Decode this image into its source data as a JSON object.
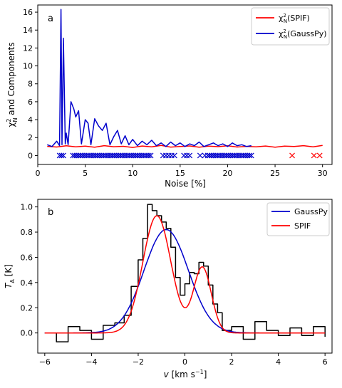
{
  "chart_data": [
    {
      "type": "line",
      "panel_label": "a",
      "xlabel": "Noise [%]",
      "ylabel_main": "χ",
      "ylabel_sup": "2",
      "ylabel_sub": "N",
      "ylabel_rest": " and Components",
      "xlim": [
        0,
        31
      ],
      "ylim": [
        -1,
        16.8
      ],
      "xticks": [
        0,
        5,
        10,
        15,
        20,
        25,
        30
      ],
      "yticks": [
        0,
        2,
        4,
        6,
        8,
        10,
        12,
        14,
        16
      ],
      "legend_position": "top-right",
      "legend": [
        {
          "main": "χ",
          "sup": "2",
          "sub": "N",
          "rest": "(SPIF)",
          "color": "#ff0000"
        },
        {
          "main": "χ",
          "sup": "2",
          "sub": "N",
          "rest": "(GaussPy)",
          "color": "#0000cc"
        }
      ],
      "series": [
        {
          "name": "χ²N(SPIF)",
          "color": "#ff0000",
          "x": [
            1.0,
            2.0,
            3.0,
            4.0,
            5.0,
            6.0,
            7.0,
            8.0,
            9.0,
            10.0,
            11.0,
            12.0,
            13.0,
            14.0,
            15.0,
            16.0,
            17.0,
            18.0,
            19.0,
            20.0,
            21.0,
            22.0,
            23.0,
            24.0,
            25.0,
            26.0,
            27.0,
            28.0,
            29.0,
            30.0
          ],
          "y": [
            1.02,
            0.95,
            1.08,
            0.97,
            1.05,
            0.92,
            1.1,
            0.98,
            1.03,
            0.9,
            1.06,
            0.96,
            1.12,
            0.94,
            1.0,
            1.07,
            0.93,
            1.04,
            0.99,
            1.09,
            0.95,
            1.02,
            0.97,
            1.06,
            0.92,
            1.05,
            1.0,
            1.1,
            0.96,
            1.12
          ]
        },
        {
          "name": "χ²N(GaussPy)",
          "color": "#0000cc",
          "x": [
            1.0,
            1.5,
            2.0,
            2.3,
            2.45,
            2.55,
            2.7,
            2.9,
            3.0,
            3.2,
            3.5,
            3.8,
            4.0,
            4.3,
            4.6,
            5.0,
            5.3,
            5.6,
            6.0,
            6.4,
            6.8,
            7.2,
            7.6,
            8.0,
            8.4,
            8.8,
            9.2,
            9.6,
            10.0,
            10.5,
            11.0,
            11.5,
            12.0,
            12.5,
            13.0,
            13.5,
            14.0,
            14.5,
            15.0,
            15.5,
            16.0,
            16.5,
            17.0,
            17.5,
            18.0,
            18.5,
            19.0,
            19.5,
            20.0,
            20.5,
            21.0,
            21.5,
            22.0,
            22.5
          ],
          "y": [
            1.2,
            1.0,
            1.6,
            1.1,
            16.3,
            1.2,
            13.1,
            1.3,
            2.5,
            1.2,
            6.0,
            5.2,
            4.3,
            5.0,
            1.3,
            4.0,
            3.6,
            1.2,
            4.1,
            3.3,
            2.8,
            3.6,
            1.2,
            2.1,
            2.8,
            1.3,
            2.2,
            1.2,
            1.8,
            1.1,
            1.6,
            1.2,
            1.7,
            1.1,
            1.4,
            1.0,
            1.5,
            1.1,
            1.4,
            1.0,
            1.3,
            1.1,
            1.5,
            1.0,
            1.2,
            1.4,
            1.1,
            1.3,
            1.0,
            1.4,
            1.1,
            1.2,
            1.0,
            1.1
          ]
        },
        {
          "name": "SPIF components",
          "marker": "x",
          "color": "#ff0000",
          "x": [
            26.8,
            29.1,
            29.7
          ],
          "y": [
            0,
            0,
            0
          ]
        },
        {
          "name": "GaussPy components",
          "marker": "x",
          "color": "#0000cc",
          "x": [
            2.3,
            2.5,
            2.7,
            3.7,
            3.9,
            4.1,
            4.3,
            4.5,
            4.7,
            4.9,
            5.1,
            5.3,
            5.5,
            5.7,
            5.9,
            6.1,
            6.3,
            6.5,
            6.7,
            6.9,
            7.1,
            7.3,
            7.5,
            7.7,
            7.9,
            8.1,
            8.3,
            8.5,
            8.7,
            8.9,
            9.1,
            9.3,
            9.5,
            9.7,
            9.9,
            10.1,
            10.3,
            10.5,
            10.7,
            10.9,
            11.1,
            11.3,
            11.5,
            11.7,
            11.9,
            13.2,
            13.5,
            13.8,
            14.1,
            14.4,
            15.4,
            15.7,
            16.0,
            17.1,
            17.6,
            17.9,
            18.1,
            18.3,
            18.5,
            18.7,
            18.9,
            19.1,
            19.3,
            19.5,
            19.7,
            19.9,
            20.1,
            20.3,
            20.5,
            20.7,
            20.9,
            21.1,
            21.3,
            21.5,
            21.7,
            21.9,
            22.1,
            22.3,
            22.5
          ],
          "y": [
            0,
            0,
            0,
            0,
            0,
            0,
            0,
            0,
            0,
            0,
            0,
            0,
            0,
            0,
            0,
            0,
            0,
            0,
            0,
            0,
            0,
            0,
            0,
            0,
            0,
            0,
            0,
            0,
            0,
            0,
            0,
            0,
            0,
            0,
            0,
            0,
            0,
            0,
            0,
            0,
            0,
            0,
            0,
            0,
            0,
            0,
            0,
            0,
            0,
            0,
            0,
            0,
            0,
            0,
            0,
            0,
            0,
            0,
            0,
            0,
            0,
            0,
            0,
            0,
            0,
            0,
            0,
            0,
            0,
            0,
            0,
            0,
            0,
            0,
            0,
            0,
            0,
            0,
            0
          ]
        }
      ]
    },
    {
      "type": "line",
      "panel_label": "b",
      "xlabel_main": "v",
      "xlabel_unit": "[km s",
      "xlabel_unit_sup": "−1",
      "xlabel_unit_end": "]",
      "ylabel_main": "T",
      "ylabel_sub": "A",
      "ylabel_rest": " [K]",
      "xlim": [
        -6.3,
        6.3
      ],
      "ylim": [
        -0.16,
        1.06
      ],
      "xticks": [
        -6,
        -4,
        -2,
        0,
        2,
        4,
        6
      ],
      "xtick_labels": [
        "−6",
        "−4",
        "−2",
        "0",
        "2",
        "4",
        "6"
      ],
      "yticks": [
        0.0,
        0.2,
        0.4,
        0.6,
        0.8,
        1.0
      ],
      "ytick_labels": [
        "0.0",
        "0.2",
        "0.4",
        "0.6",
        "0.8",
        "1.0"
      ],
      "legend_position": "top-right",
      "legend": [
        {
          "label": "GaussPy",
          "color": "#0000cc"
        },
        {
          "label": "SPIF",
          "color": "#ff0000"
        }
      ],
      "series": [
        {
          "name": "Spectrum",
          "color": "#000000",
          "step": true,
          "x": [
            -6.0,
            -5.5,
            -5.0,
            -4.5,
            -4.0,
            -3.5,
            -3.0,
            -2.6,
            -2.3,
            -2.0,
            -1.8,
            -1.6,
            -1.4,
            -1.2,
            -1.0,
            -0.8,
            -0.6,
            -0.4,
            -0.2,
            0.0,
            0.2,
            0.4,
            0.6,
            0.8,
            1.0,
            1.2,
            1.4,
            1.6,
            2.0,
            2.5,
            3.0,
            3.5,
            4.0,
            4.5,
            5.0,
            5.5,
            6.0
          ],
          "y": [
            0.0,
            -0.07,
            0.05,
            0.02,
            -0.05,
            0.06,
            0.08,
            0.14,
            0.37,
            0.58,
            0.75,
            1.02,
            0.97,
            0.93,
            0.88,
            0.83,
            0.68,
            0.44,
            0.3,
            0.39,
            0.48,
            0.47,
            0.56,
            0.53,
            0.38,
            0.23,
            0.16,
            0.02,
            0.05,
            -0.05,
            0.09,
            0.02,
            -0.02,
            0.04,
            -0.02,
            0.05,
            -0.03
          ]
        },
        {
          "name": "GaussPy",
          "color": "#0000cc",
          "model": "gaussians",
          "components": [
            {
              "amp": 0.82,
              "mu": -0.8,
              "sigma": 0.95
            }
          ]
        },
        {
          "name": "SPIF",
          "color": "#ff0000",
          "model": "gaussians",
          "components": [
            {
              "amp": 0.93,
              "mu": -1.2,
              "sigma": 0.6
            },
            {
              "amp": 0.52,
              "mu": 0.75,
              "sigma": 0.38
            }
          ]
        }
      ]
    }
  ]
}
